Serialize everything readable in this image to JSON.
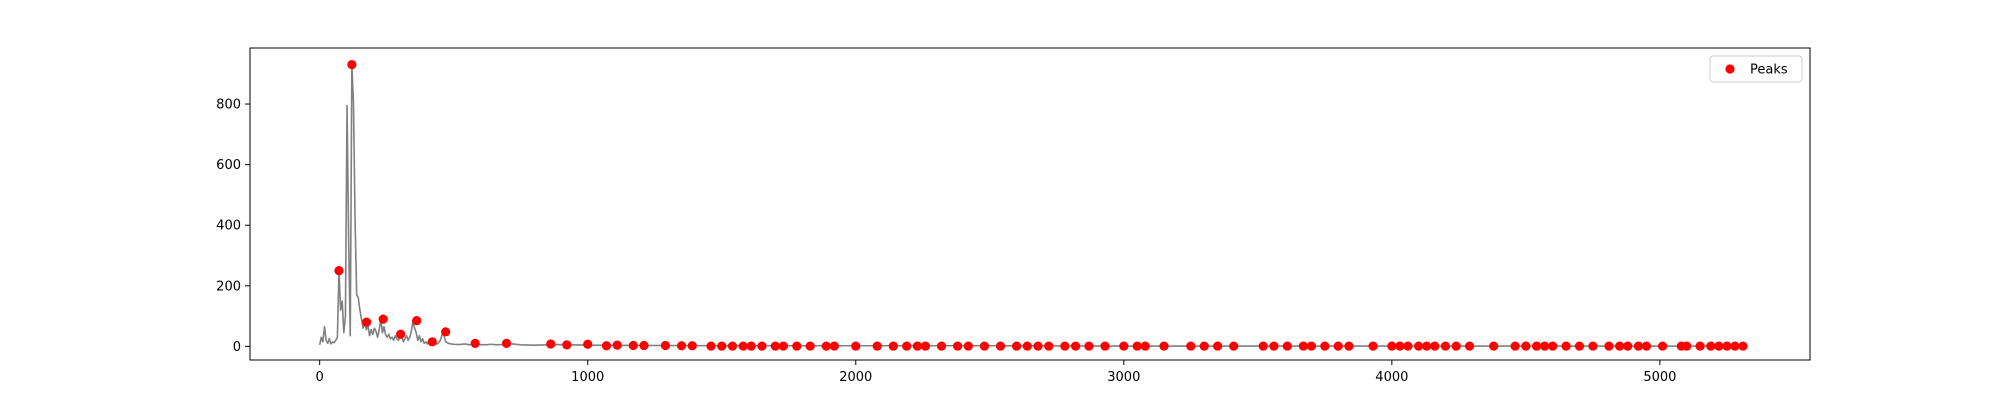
{
  "chart_data": {
    "type": "line",
    "title": "",
    "xlabel": "",
    "ylabel": "",
    "xlim": [
      -260,
      5560
    ],
    "ylim": [
      -45,
      985
    ],
    "x_ticks": [
      0,
      1000,
      2000,
      3000,
      4000,
      5000
    ],
    "y_ticks": [
      0,
      200,
      400,
      600,
      800
    ],
    "grid": false,
    "legend_position": "top-right",
    "colors": {
      "line": "#808080",
      "peaks": "#ff0000",
      "axes": "#000000"
    },
    "series": [
      {
        "type": "line",
        "color": "#808080",
        "x": [
          0,
          6,
          12,
          18,
          24,
          30,
          36,
          42,
          48,
          54,
          60,
          66,
          72,
          78,
          84,
          90,
          96,
          102,
          108,
          114,
          120,
          126,
          132,
          138,
          144,
          150,
          156,
          162,
          168,
          174,
          180,
          186,
          192,
          198,
          204,
          210,
          216,
          222,
          228,
          234,
          240,
          246,
          252,
          258,
          264,
          270,
          276,
          282,
          288,
          294,
          300,
          306,
          312,
          318,
          324,
          330,
          336,
          342,
          348,
          354,
          360,
          366,
          372,
          378,
          384,
          390,
          396,
          402,
          408,
          414,
          420,
          430,
          440,
          450,
          460,
          470,
          480,
          490,
          500,
          520,
          540,
          560,
          580,
          600,
          620,
          640,
          660,
          680,
          700,
          750,
          800,
          850,
          900,
          1000,
          1200,
          1500,
          2000,
          2500,
          3000,
          3500,
          4000,
          4500,
          5000,
          5300
        ],
        "y": [
          5,
          30,
          15,
          65,
          20,
          10,
          25,
          8,
          15,
          12,
          20,
          30,
          250,
          120,
          150,
          45,
          100,
          795,
          350,
          35,
          930,
          805,
          420,
          170,
          160,
          120,
          90,
          60,
          80,
          55,
          70,
          35,
          55,
          40,
          60,
          50,
          30,
          55,
          90,
          45,
          65,
          38,
          30,
          40,
          25,
          30,
          20,
          35,
          25,
          20,
          40,
          30,
          15,
          25,
          35,
          20,
          30,
          50,
          85,
          60,
          45,
          20,
          35,
          15,
          25,
          10,
          15,
          8,
          20,
          12,
          15,
          10,
          8,
          20,
          48,
          15,
          10,
          8,
          7,
          6,
          8,
          5,
          10,
          6,
          5,
          7,
          5,
          6,
          10,
          5,
          4,
          5,
          6,
          4,
          3,
          2,
          2,
          2,
          1,
          1,
          1,
          1,
          1,
          1
        ]
      },
      {
        "type": "scatter",
        "name": "Peaks",
        "color": "#ff0000",
        "x": [
          72,
          120,
          175,
          237,
          302,
          362,
          420,
          470,
          580,
          697,
          862,
          922,
          1000,
          1070,
          1110,
          1170,
          1210,
          1290,
          1350,
          1390,
          1460,
          1500,
          1540,
          1580,
          1610,
          1650,
          1700,
          1730,
          1780,
          1830,
          1890,
          1920,
          2000,
          2080,
          2140,
          2190,
          2230,
          2260,
          2320,
          2380,
          2420,
          2480,
          2540,
          2600,
          2640,
          2680,
          2720,
          2780,
          2820,
          2870,
          2930,
          3000,
          3050,
          3080,
          3150,
          3250,
          3300,
          3350,
          3410,
          3520,
          3560,
          3610,
          3670,
          3700,
          3750,
          3800,
          3840,
          3930,
          4000,
          4030,
          4060,
          4100,
          4130,
          4160,
          4200,
          4240,
          4290,
          4380,
          4460,
          4500,
          4540,
          4570,
          4600,
          4650,
          4700,
          4750,
          4810,
          4850,
          4880,
          4920,
          4950,
          5010,
          5080,
          5100,
          5150,
          5190,
          5220,
          5250,
          5280,
          5310
        ],
        "y": [
          250,
          930,
          80,
          90,
          40,
          85,
          15,
          48,
          10,
          10,
          8,
          5,
          7,
          2,
          4,
          3,
          3,
          3,
          2,
          2,
          1,
          1,
          1,
          1,
          1,
          1,
          1,
          1,
          1,
          1,
          1,
          1,
          1,
          1,
          1,
          1,
          1,
          1,
          1,
          1,
          1,
          1,
          1,
          1,
          1,
          1,
          1,
          1,
          1,
          1,
          1,
          1,
          1,
          1,
          1,
          1,
          1,
          1,
          1,
          1,
          1,
          1,
          1,
          1,
          1,
          1,
          1,
          1,
          1,
          1,
          1,
          1,
          1,
          1,
          1,
          1,
          1,
          1,
          1,
          1,
          1,
          1,
          1,
          1,
          1,
          1,
          1,
          1,
          1,
          1,
          1,
          1,
          1,
          1,
          1,
          1,
          1,
          1,
          1,
          1
        ]
      }
    ],
    "legend": [
      {
        "label": "Peaks",
        "color": "#ff0000",
        "marker": "circle"
      }
    ]
  }
}
